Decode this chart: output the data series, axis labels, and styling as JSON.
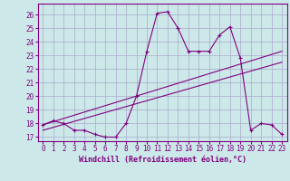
{
  "bg_color": "#cce8e8",
  "line_color": "#800080",
  "grid_color": "#aaaacc",
  "xlim": [
    -0.5,
    23.5
  ],
  "ylim": [
    16.7,
    26.8
  ],
  "yticks": [
    17,
    18,
    19,
    20,
    21,
    22,
    23,
    24,
    25,
    26
  ],
  "xticks": [
    0,
    1,
    2,
    3,
    4,
    5,
    6,
    7,
    8,
    9,
    10,
    11,
    12,
    13,
    14,
    15,
    16,
    17,
    18,
    19,
    20,
    21,
    22,
    23
  ],
  "xlabel": "Windchill (Refroidissement éolien,°C)",
  "series1_x": [
    0,
    1,
    2,
    3,
    4,
    5,
    6,
    7,
    8,
    9,
    10,
    11,
    12,
    13,
    14,
    15,
    16,
    17,
    18,
    19,
    20,
    21,
    22,
    23
  ],
  "series1_y": [
    17.9,
    18.2,
    18.0,
    17.5,
    17.5,
    17.2,
    17.0,
    17.0,
    18.0,
    20.0,
    23.3,
    26.1,
    26.2,
    25.0,
    23.3,
    23.3,
    23.3,
    24.5,
    25.1,
    22.8,
    17.5,
    18.0,
    17.9,
    17.2
  ],
  "series2_x": [
    0,
    23
  ],
  "series2_y": [
    17.9,
    23.3
  ],
  "series3_x": [
    0,
    23
  ],
  "series3_y": [
    17.5,
    22.5
  ],
  "tick_fontsize": 5.5,
  "xlabel_fontsize": 6.0,
  "marker_size": 2.5,
  "line_width": 0.8
}
